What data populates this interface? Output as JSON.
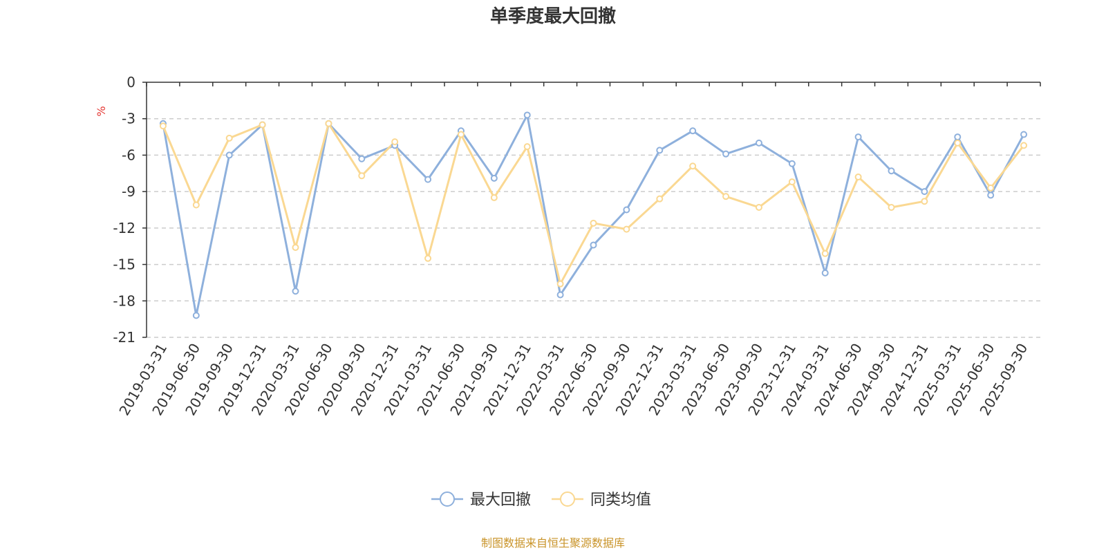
{
  "chart_data": {
    "type": "line",
    "title": "单季度最大回撤",
    "ylabel": "%",
    "ylim": [
      -21,
      0
    ],
    "yticks": [
      0,
      -3,
      -6,
      -9,
      -12,
      -15,
      -18,
      -21
    ],
    "grid": true,
    "legend_position": "bottom-center",
    "categories": [
      "2019-03-31",
      "2019-06-30",
      "2019-09-30",
      "2019-12-31",
      "2020-03-31",
      "2020-06-30",
      "2020-09-30",
      "2020-12-31",
      "2021-03-31",
      "2021-06-30",
      "2021-09-30",
      "2021-12-31",
      "2022-03-31",
      "2022-06-30",
      "2022-09-30",
      "2022-12-31",
      "2023-03-31",
      "2023-06-30",
      "2023-09-30",
      "2023-12-31",
      "2024-03-31",
      "2024-06-30",
      "2024-09-30",
      "2024-12-31",
      "2025-03-31",
      "2025-06-30",
      "2025-09-30"
    ],
    "series": [
      {
        "name": "最大回撤",
        "color": "#8eb0dc",
        "values": [
          -3.4,
          -19.2,
          -6.0,
          -3.5,
          -17.2,
          -3.4,
          -6.3,
          -5.2,
          -8.0,
          -4.0,
          -7.9,
          -2.7,
          -17.5,
          -13.4,
          -10.5,
          -5.6,
          -4.0,
          -5.9,
          -5.0,
          -6.7,
          -15.7,
          -4.5,
          -7.3,
          -9.0,
          -4.5,
          -9.3,
          -4.3
        ]
      },
      {
        "name": "同类均值",
        "color": "#fad892",
        "values": [
          -3.6,
          -10.1,
          -4.6,
          -3.5,
          -13.6,
          -3.4,
          -7.7,
          -4.9,
          -14.5,
          -4.3,
          -9.5,
          -5.3,
          -16.6,
          -11.6,
          -12.1,
          -9.6,
          -6.9,
          -9.4,
          -10.3,
          -8.2,
          -14.1,
          -7.8,
          -10.3,
          -9.8,
          -5.0,
          -8.7,
          -5.2
        ]
      }
    ]
  },
  "source": {
    "text": "制图数据来自恒生聚源数据库",
    "color": "#c9942a"
  },
  "unit_color": "#e53935"
}
